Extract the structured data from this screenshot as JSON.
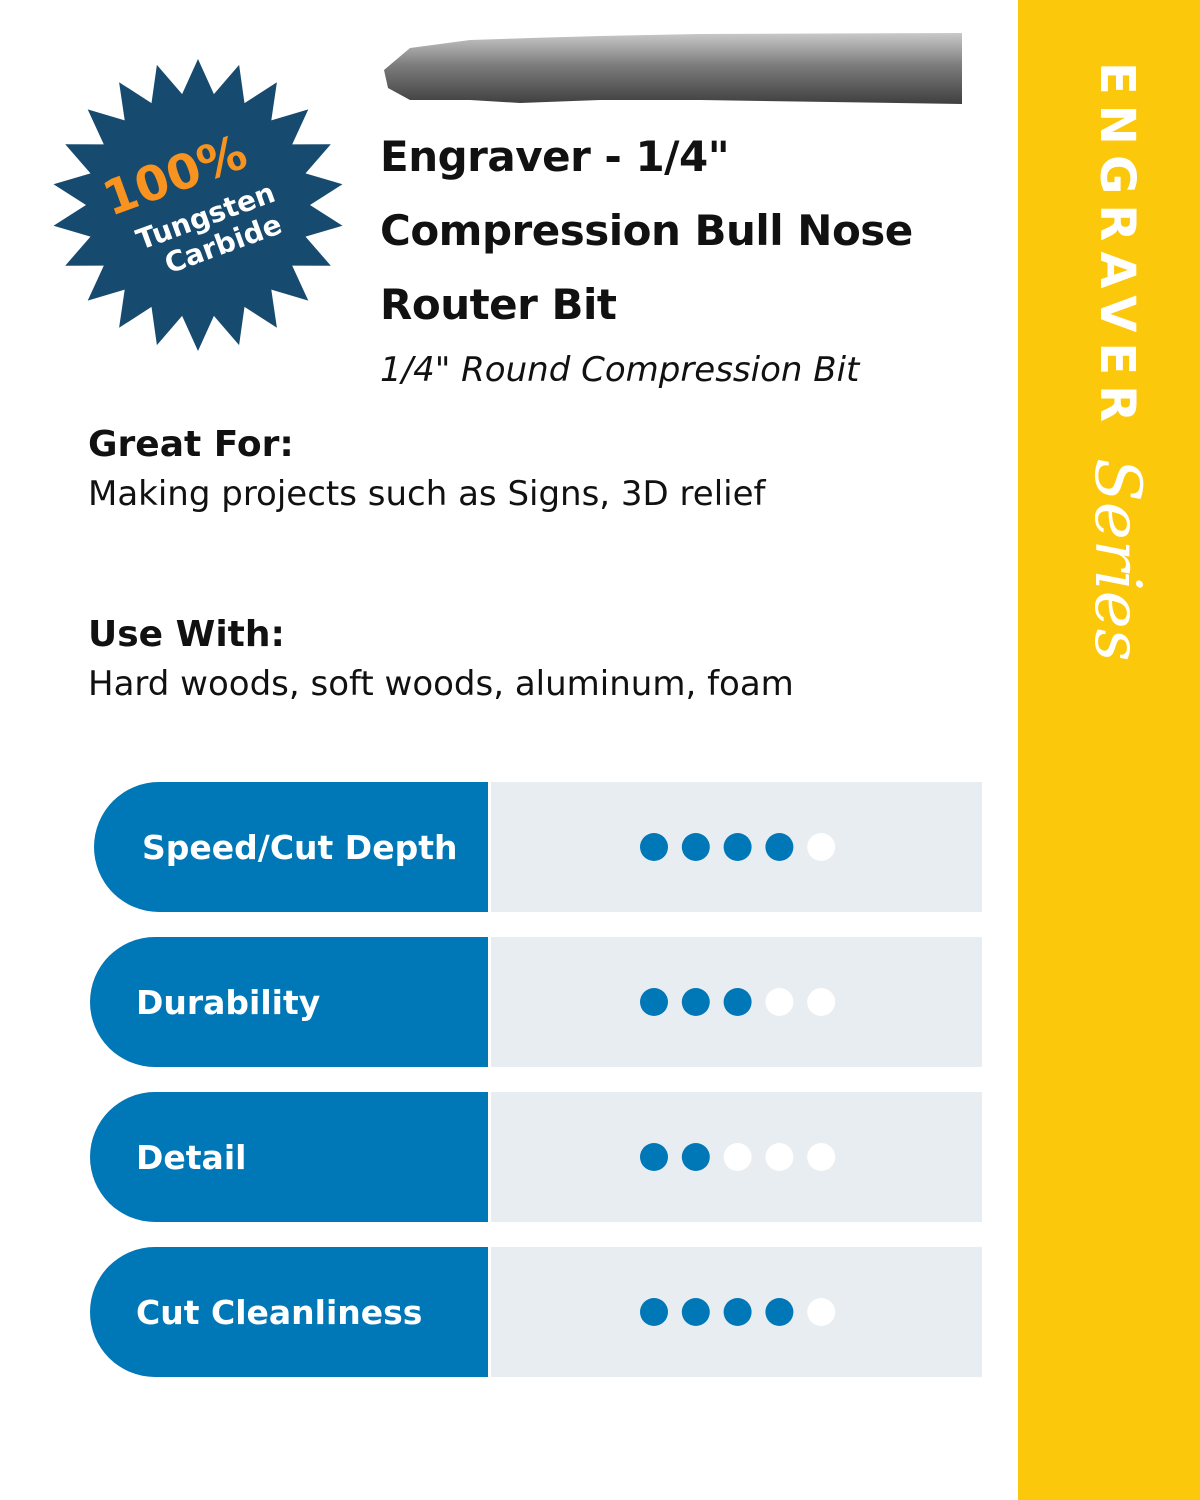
{
  "badge": {
    "percent": "100%",
    "line1": "Tungsten",
    "line2": "Carbide"
  },
  "title_lines": [
    "Engraver  - 1/4\"",
    "Compression Bull Nose",
    "Router Bit"
  ],
  "subtitle": "1/4\" Round Compression Bit",
  "sections": [
    {
      "heading": "Great For:",
      "text": "Making projects such as Signs, 3D relief"
    },
    {
      "heading": "Use With:",
      "text": "Hard woods, soft woods, aluminum, foam"
    }
  ],
  "rating_scale": 5,
  "ratings": [
    {
      "label": "Speed/Cut Depth",
      "value": 4
    },
    {
      "label": "Durability",
      "value": 3
    },
    {
      "label": "Detail",
      "value": 2
    },
    {
      "label": "Cut Cleanliness",
      "value": 4
    }
  ],
  "banner": {
    "word": "ENGRAVER",
    "script": "Series"
  }
}
